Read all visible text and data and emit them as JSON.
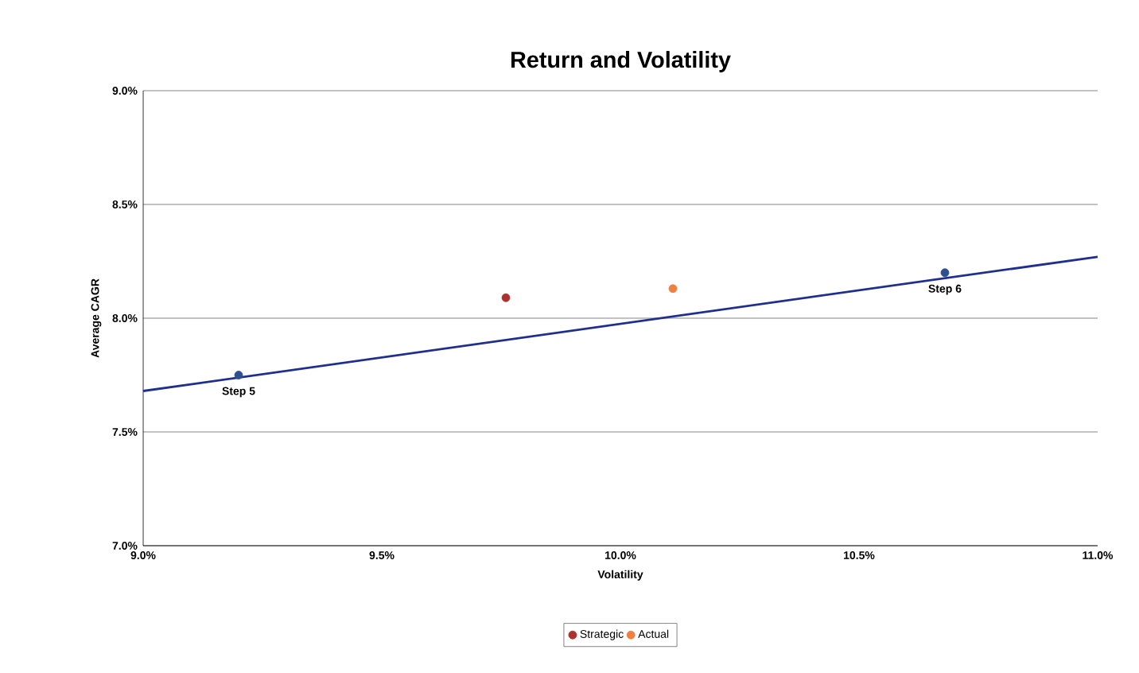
{
  "chart_data": {
    "type": "scatter",
    "title": "Return and Volatility",
    "xlabel": "Volatility",
    "ylabel": "Average CAGR",
    "xlim": [
      9.0,
      11.0
    ],
    "ylim": [
      7.0,
      9.0
    ],
    "xticks": [
      {
        "value": 9.0,
        "label": "9.0%"
      },
      {
        "value": 9.5,
        "label": "9.5%"
      },
      {
        "value": 10.0,
        "label": "10.0%"
      },
      {
        "value": 10.5,
        "label": "10.5%"
      },
      {
        "value": 11.0,
        "label": "11.0%"
      }
    ],
    "yticks": [
      {
        "value": 7.0,
        "label": "7.0%"
      },
      {
        "value": 7.5,
        "label": "7.5%"
      },
      {
        "value": 8.0,
        "label": "8.0%"
      },
      {
        "value": 8.5,
        "label": "8.5%"
      },
      {
        "value": 9.0,
        "label": "9.0%"
      }
    ],
    "grid": "y",
    "legend": "bottom",
    "series": [
      {
        "type": "line",
        "marker": "none",
        "color": "#1f2f8f",
        "x": [
          9.0,
          11.0
        ],
        "values": [
          7.68,
          8.27
        ]
      },
      {
        "marker": "circle",
        "color": "#2f4f8f",
        "x": [
          9.2,
          10.68
        ],
        "values": [
          7.75,
          8.2
        ]
      },
      {
        "name": "Strategic",
        "marker": "circle",
        "color": "#b03030",
        "x": [
          9.76
        ],
        "values": [
          8.09
        ]
      },
      {
        "name": "Actual",
        "marker": "circle",
        "color": "#f08040",
        "x": [
          10.11
        ],
        "values": [
          8.13
        ]
      }
    ],
    "annotations": [
      {
        "text": "Step 5",
        "x": 9.2,
        "y": 7.75
      },
      {
        "text": "Step 6",
        "x": 10.68,
        "y": 8.2
      }
    ]
  }
}
